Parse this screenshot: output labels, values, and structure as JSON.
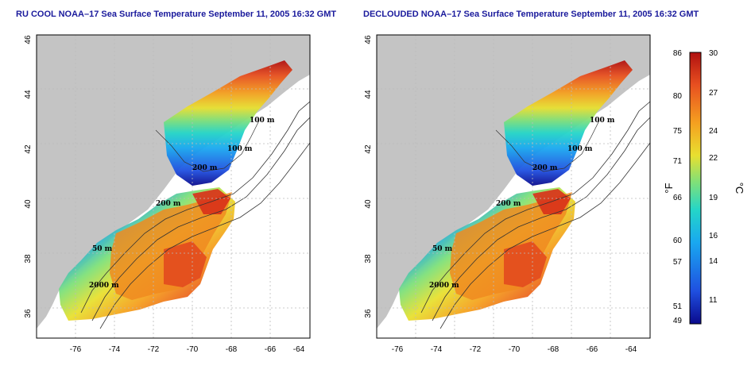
{
  "panels": [
    {
      "title": "RU COOL NOAA–17 Sea Surface Temperature September 11, 2005 16:32 GMT",
      "isobaths": [
        "100 m",
        "100 m",
        "200 m",
        "200 m",
        "50 m",
        "2000 m"
      ]
    },
    {
      "title": "DECLOUDED NOAA–17 Sea Surface Temperature September 11, 2005 16:32 GMT",
      "isobaths": [
        "100 m",
        "100 m",
        "200 m",
        "200 m",
        "50 m",
        "2000 m"
      ]
    }
  ],
  "axes": {
    "x_ticks": [
      "-76",
      "-74",
      "-72",
      "-70",
      "-68",
      "-66",
      "-64"
    ],
    "y_ticks": [
      "46",
      "44",
      "42",
      "40",
      "38",
      "36"
    ]
  },
  "colorbar": {
    "fahrenheit_label": "°F",
    "celsius_label": "°C",
    "fahrenheit_ticks": [
      "86",
      "80",
      "75",
      "71",
      "66",
      "60",
      "57",
      "51",
      "49"
    ],
    "celsius_ticks": [
      "30",
      "27",
      "24",
      "22",
      "19",
      "16",
      "14",
      "11"
    ],
    "stops": [
      "#0a0a8c",
      "#1f4fe0",
      "#19a8f0",
      "#24d6c8",
      "#7ee07a",
      "#e8e030",
      "#f5a020",
      "#e85020",
      "#b01010"
    ]
  },
  "colors": {
    "land": "#c4c4c4",
    "title": "#1a1a9c"
  }
}
